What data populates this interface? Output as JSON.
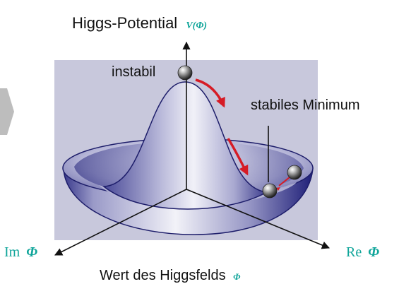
{
  "title": {
    "text": "Higgs-Potential",
    "symbol": "V(Φ)"
  },
  "labels": {
    "unstable": "instabil",
    "stable_minimum": "stabiles Minimum",
    "bottom_axis": "Wert des Higgsfelds",
    "bottom_axis_symbol": "Φ",
    "im_axis": {
      "prefix": "Im",
      "symbol": "Φ"
    },
    "re_axis": {
      "prefix": "Re",
      "symbol": "Φ"
    }
  },
  "colors": {
    "teal_symbol": "#10a59a",
    "surface_light": "#e9e8f3",
    "surface_dark": "#2a2a80",
    "backdrop": "#c8c8dc",
    "arrow_red": "#d61b25",
    "side_tab": "#bdbdbd"
  }
}
